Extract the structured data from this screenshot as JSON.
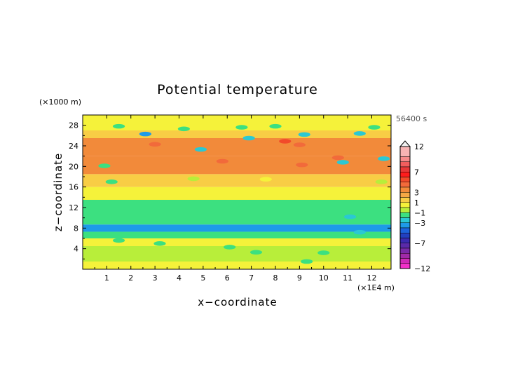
{
  "chart_data": {
    "type": "heatmap",
    "title": "Potential temperature",
    "xlabel": "x−coordinate",
    "ylabel": "z−coordinate",
    "x_unit": "(×1E4 m)",
    "y_unit": "(×1000 m)",
    "time_label": "56400 s",
    "xlim": [
      0,
      12.8
    ],
    "ylim": [
      0,
      30
    ],
    "x_ticks": [
      "1",
      "2",
      "3",
      "4",
      "5",
      "6",
      "7",
      "8",
      "9",
      "10",
      "11",
      "12"
    ],
    "y_ticks": [
      "4",
      "8",
      "12",
      "16",
      "20",
      "24",
      "28"
    ],
    "colorbar": {
      "labels": [
        "12",
        "7",
        "3",
        "1",
        "−1",
        "−3",
        "−7",
        "−12"
      ],
      "extend_max_triangle": true,
      "levels": [
        {
          "max": 12,
          "min": 10,
          "color": "#f7b3b3"
        },
        {
          "max": 10,
          "min": 9,
          "color": "#f68a8a"
        },
        {
          "max": 9,
          "min": 8,
          "color": "#f25e5e"
        },
        {
          "max": 8,
          "min": 7,
          "color": "#e83838"
        },
        {
          "max": 7,
          "min": 6,
          "color": "#ff1c1c"
        },
        {
          "max": 6,
          "min": 5,
          "color": "#f24a2a"
        },
        {
          "max": 5,
          "min": 4,
          "color": "#f26a3a"
        },
        {
          "max": 4,
          "min": 3,
          "color": "#f28a3a"
        },
        {
          "max": 3,
          "min": 2,
          "color": "#f5a845"
        },
        {
          "max": 2,
          "min": 1,
          "color": "#f8cd45"
        },
        {
          "max": 1,
          "min": 0,
          "color": "#f5f23a"
        },
        {
          "max": 0,
          "min": -1,
          "color": "#b8ee3a"
        },
        {
          "max": -1,
          "min": -2,
          "color": "#3ce080"
        },
        {
          "max": -2,
          "min": -3,
          "color": "#2bc8d3"
        },
        {
          "max": -3,
          "min": -4,
          "color": "#1e9ae8"
        },
        {
          "max": -4,
          "min": -5,
          "color": "#1c64dc"
        },
        {
          "max": -5,
          "min": -6,
          "color": "#2240c0"
        },
        {
          "max": -6,
          "min": -7,
          "color": "#3a2ab0"
        },
        {
          "max": -7,
          "min": -8,
          "color": "#5a2aa8"
        },
        {
          "max": -8,
          "min": -9,
          "color": "#7a2aa8"
        },
        {
          "max": -9,
          "min": -10,
          "color": "#a02aa8"
        },
        {
          "max": -10,
          "min": -11,
          "color": "#d02ab8"
        },
        {
          "max": -11,
          "min": -12,
          "color": "#f230c8"
        }
      ]
    },
    "bands": [
      {
        "z_min": 0,
        "z_max": 1.5,
        "value": 0.5
      },
      {
        "z_min": 1.5,
        "z_max": 4.5,
        "value": -0.5
      },
      {
        "z_min": 4.5,
        "z_max": 6,
        "value": 0.3
      },
      {
        "z_min": 6,
        "z_max": 7.3,
        "value": -1.5
      },
      {
        "z_min": 7.3,
        "z_max": 8.7,
        "value": -3.5
      },
      {
        "z_min": 8.7,
        "z_max": 13.5,
        "value": -1.5
      },
      {
        "z_min": 13.5,
        "z_max": 16,
        "value": 0.5
      },
      {
        "z_min": 16,
        "z_max": 18.5,
        "value": 1.5
      },
      {
        "z_min": 18.5,
        "z_max": 22,
        "value": 3.5
      },
      {
        "z_min": 22,
        "z_max": 25.5,
        "value": 3.5
      },
      {
        "z_min": 25.5,
        "z_max": 27,
        "value": 1.5
      },
      {
        "z_min": 27,
        "z_max": 30,
        "value": 0.5
      }
    ],
    "features": [
      {
        "x": 2.6,
        "z": 26.3,
        "value": -3.5
      },
      {
        "x": 4.2,
        "z": 27.3,
        "value": -1.5
      },
      {
        "x": 6.6,
        "z": 27.6,
        "value": -1.5
      },
      {
        "x": 6.9,
        "z": 25.5,
        "value": -2.5
      },
      {
        "x": 4.9,
        "z": 23.3,
        "value": -2.5
      },
      {
        "x": 8.0,
        "z": 27.8,
        "value": -1.5
      },
      {
        "x": 9.2,
        "z": 26.2,
        "value": -2.5
      },
      {
        "x": 11.5,
        "z": 26.4,
        "value": -2.5
      },
      {
        "x": 12.1,
        "z": 27.6,
        "value": -1.5
      },
      {
        "x": 1.5,
        "z": 27.8,
        "value": -1.5
      },
      {
        "x": 3.0,
        "z": 24.3,
        "value": 4.5
      },
      {
        "x": 8.4,
        "z": 24.9,
        "value": 5.5
      },
      {
        "x": 9.0,
        "z": 24.2,
        "value": 4.5
      },
      {
        "x": 5.8,
        "z": 21.0,
        "value": 4.5
      },
      {
        "x": 10.6,
        "z": 21.7,
        "value": 4.5
      },
      {
        "x": 2.0,
        "z": 19.2,
        "value": 3.5
      },
      {
        "x": 9.1,
        "z": 20.3,
        "value": 4.5
      },
      {
        "x": 11.2,
        "z": 19.5,
        "value": 3.5
      },
      {
        "x": 1.2,
        "z": 17.0,
        "value": -1.5
      },
      {
        "x": 4.6,
        "z": 17.6,
        "value": -0.5
      },
      {
        "x": 0.9,
        "z": 20.1,
        "value": -1.5
      },
      {
        "x": 10.8,
        "z": 20.8,
        "value": -2.5
      },
      {
        "x": 12.5,
        "z": 21.5,
        "value": -2.5
      },
      {
        "x": 12.4,
        "z": 17.0,
        "value": -0.5
      },
      {
        "x": 7.6,
        "z": 17.5,
        "value": 0.5
      },
      {
        "x": 11.1,
        "z": 10.2,
        "value": -2.5
      },
      {
        "x": 1.5,
        "z": 5.6,
        "value": -1.5
      },
      {
        "x": 7.2,
        "z": 3.3,
        "value": -1.5
      },
      {
        "x": 10.0,
        "z": 3.2,
        "value": -1.5
      },
      {
        "x": 9.3,
        "z": 1.5,
        "value": -1.5
      },
      {
        "x": 6.1,
        "z": 4.3,
        "value": -1.5
      },
      {
        "x": 3.2,
        "z": 5.0,
        "value": -1.5
      },
      {
        "x": 11.5,
        "z": 7.2,
        "value": -2.5
      }
    ]
  }
}
